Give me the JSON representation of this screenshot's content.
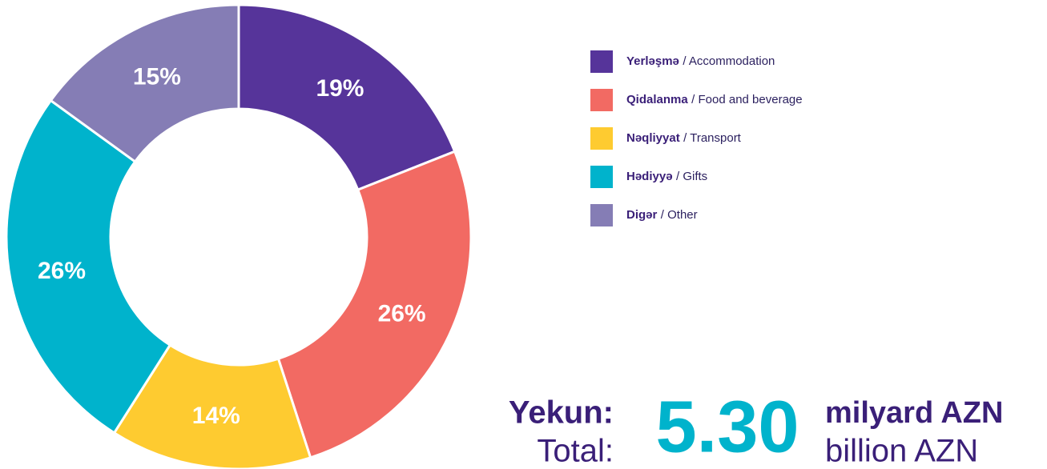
{
  "chart_data": {
    "type": "pie",
    "donut": true,
    "categories": [
      "Yerləşmə",
      "Qidalanma",
      "Nəqliyyat",
      "Hədiyyə",
      "Digər"
    ],
    "categories_en": [
      "/ Accommodation",
      "/ Food and beverage",
      "/ Transport",
      "/ Gifts",
      "/ Other"
    ],
    "values": [
      19,
      26,
      14,
      26,
      15
    ],
    "value_labels": [
      "19%",
      "26%",
      "14%",
      "26%",
      "15%"
    ],
    "colors": [
      "#56349a",
      "#f26a63",
      "#fecb30",
      "#00b3cc",
      "#857db5"
    ],
    "legend": "right",
    "total": {
      "label": "Yekun:",
      "label_en": "Total:",
      "value": "5.30",
      "unit": "milyard AZN",
      "unit_en": "billion AZN"
    }
  }
}
